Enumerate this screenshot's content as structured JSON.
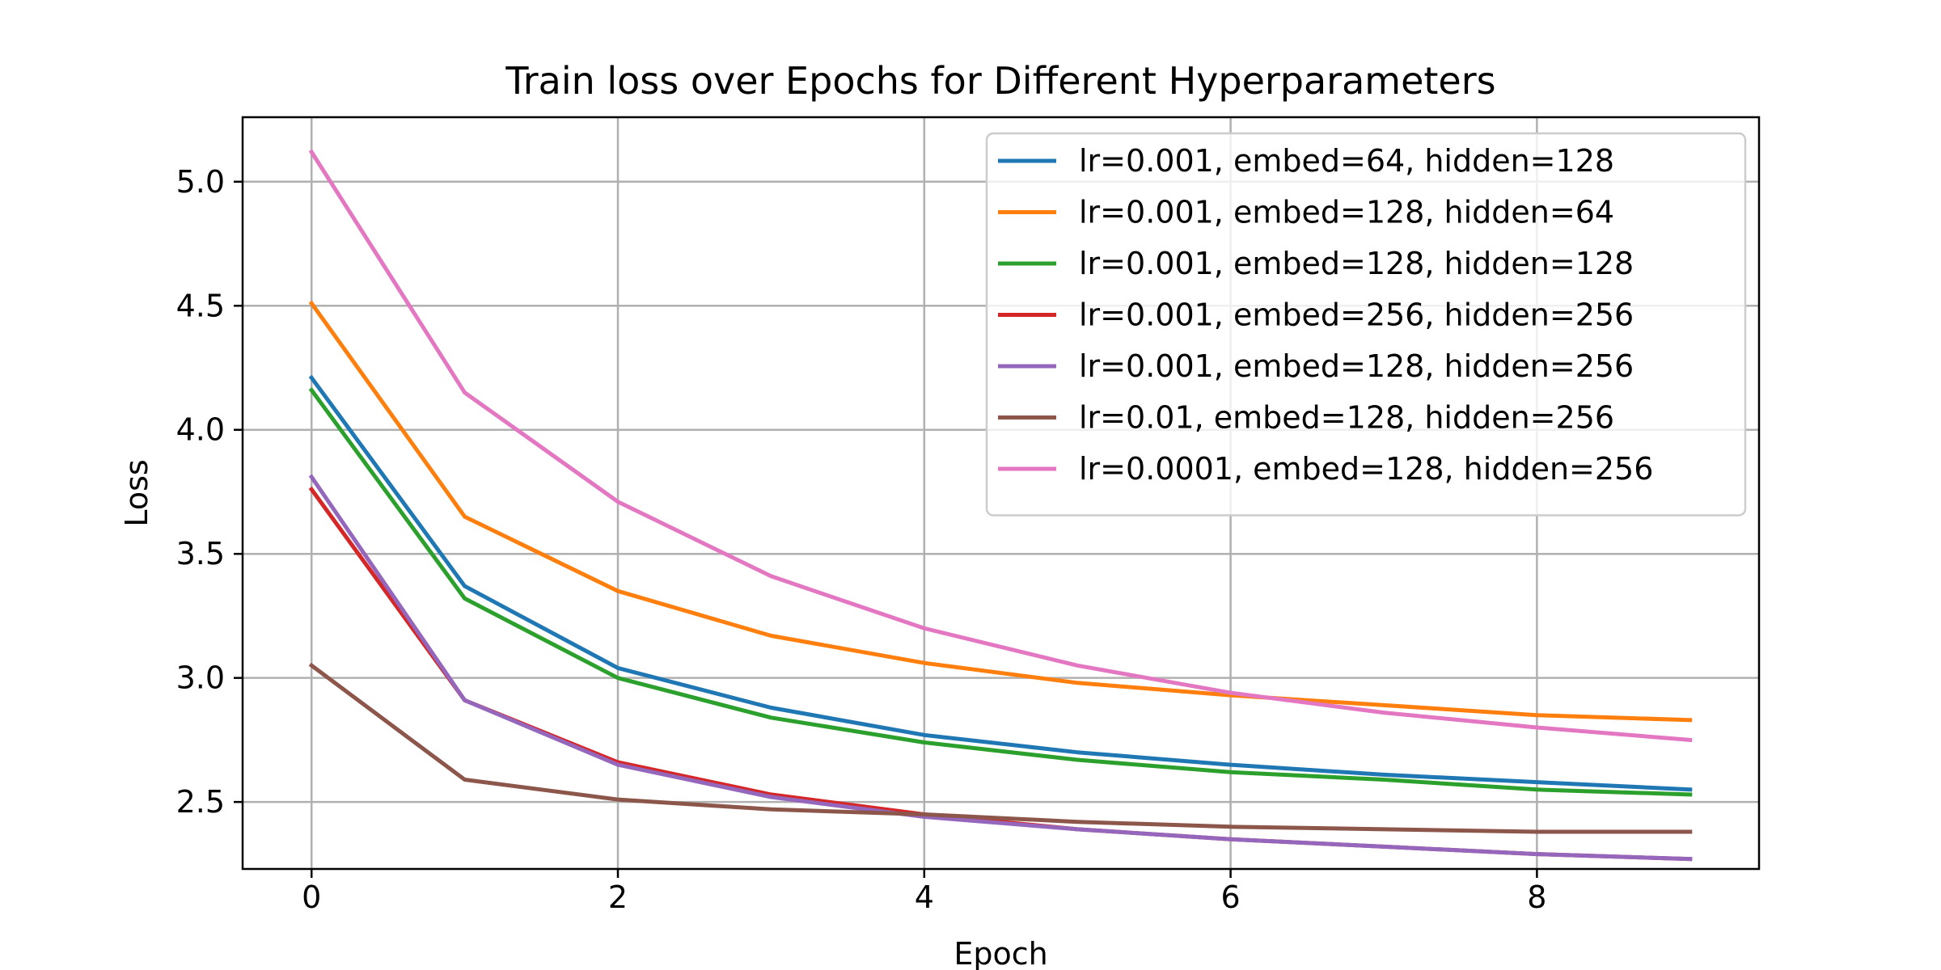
{
  "chart_data": {
    "type": "line",
    "title": "Train loss over Epochs for Different Hyperparameters",
    "xlabel": "Epoch",
    "ylabel": "Loss",
    "xlim": [
      -0.45,
      9.45
    ],
    "ylim": [
      2.23,
      5.26
    ],
    "xticks": [
      0,
      2,
      4,
      6,
      8
    ],
    "yticks": [
      2.5,
      3.0,
      3.5,
      4.0,
      4.5,
      5.0
    ],
    "xtick_labels": [
      "0",
      "2",
      "4",
      "6",
      "8"
    ],
    "ytick_labels": [
      "2.5",
      "3.0",
      "3.5",
      "4.0",
      "4.5",
      "5.0"
    ],
    "grid": true,
    "legend_position": "top-right",
    "x": [
      0,
      1,
      2,
      3,
      4,
      5,
      6,
      7,
      8,
      9
    ],
    "series": [
      {
        "name": "lr=0.001, embed=64, hidden=128",
        "color": "#1f77b4",
        "values": [
          4.21,
          3.37,
          3.04,
          2.88,
          2.77,
          2.7,
          2.65,
          2.61,
          2.58,
          2.55
        ]
      },
      {
        "name": "lr=0.001, embed=128, hidden=64",
        "color": "#ff7f0e",
        "values": [
          4.51,
          3.65,
          3.35,
          3.17,
          3.06,
          2.98,
          2.93,
          2.89,
          2.85,
          2.83
        ]
      },
      {
        "name": "lr=0.001, embed=128, hidden=128",
        "color": "#2ca02c",
        "values": [
          4.16,
          3.32,
          3.0,
          2.84,
          2.74,
          2.67,
          2.62,
          2.59,
          2.55,
          2.53
        ]
      },
      {
        "name": "lr=0.001, embed=256, hidden=256",
        "color": "#d62728",
        "values": [
          3.76,
          2.91,
          2.66,
          2.53,
          2.45,
          2.39,
          2.35,
          2.32,
          2.29,
          2.27
        ]
      },
      {
        "name": "lr=0.001, embed=128, hidden=256",
        "color": "#9467bd",
        "values": [
          3.81,
          2.91,
          2.65,
          2.52,
          2.44,
          2.39,
          2.35,
          2.32,
          2.29,
          2.27
        ]
      },
      {
        "name": "lr=0.01, embed=128, hidden=256",
        "color": "#8c564b",
        "values": [
          3.05,
          2.59,
          2.51,
          2.47,
          2.45,
          2.42,
          2.4,
          2.39,
          2.38,
          2.38
        ]
      },
      {
        "name": "lr=0.0001, embed=128, hidden=256",
        "color": "#e377c2",
        "values": [
          5.12,
          4.15,
          3.71,
          3.41,
          3.2,
          3.05,
          2.94,
          2.86,
          2.8,
          2.75
        ]
      }
    ]
  }
}
